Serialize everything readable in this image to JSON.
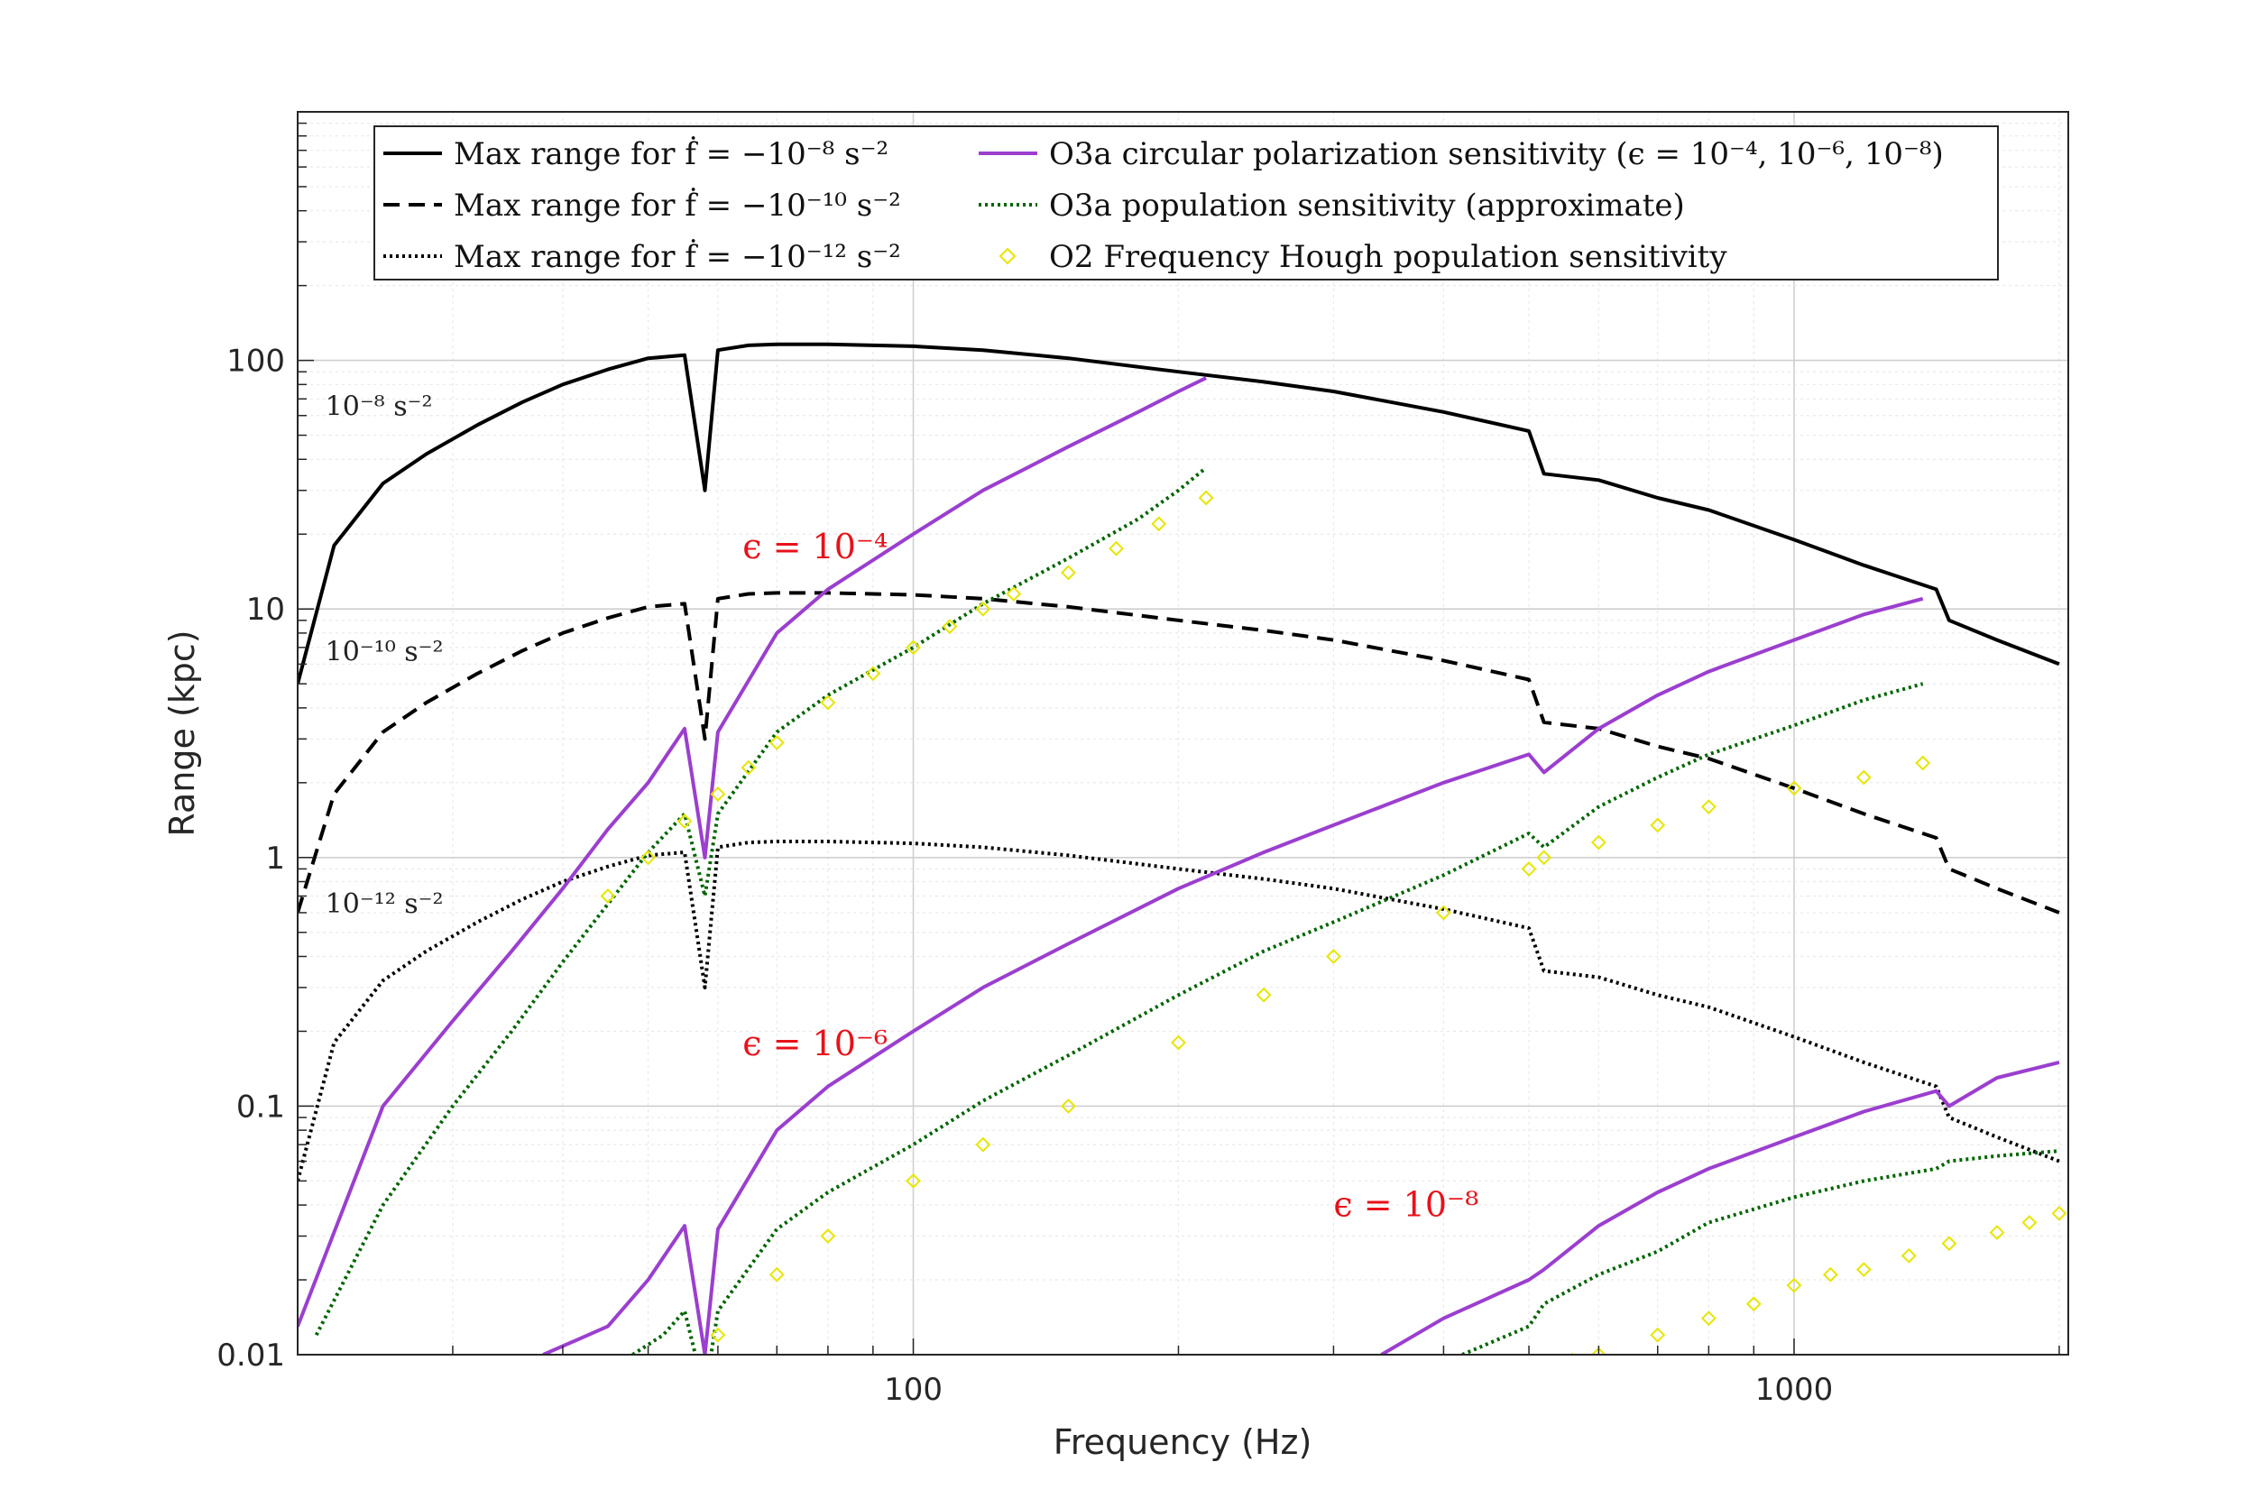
{
  "chart_data": {
    "type": "line",
    "xscale": "log",
    "yscale": "log",
    "xlim": [
      20,
      2048
    ],
    "ylim": [
      0.01,
      1000
    ],
    "xlabel": "Frequency (Hz)",
    "ylabel": "Range (kpc)",
    "grid": true,
    "legend_placement": "top",
    "x_ticks": [
      {
        "value": 100,
        "label": "100"
      },
      {
        "value": 1000,
        "label": "1000"
      }
    ],
    "y_ticks": [
      {
        "value": 0.01,
        "label": "0.01"
      },
      {
        "value": 0.1,
        "label": "0.1"
      },
      {
        "value": 1,
        "label": "1"
      },
      {
        "value": 10,
        "label": "10"
      },
      {
        "value": 100,
        "label": "100"
      }
    ],
    "legend": [
      {
        "text": "Max range for ḟ = −10⁻⁸ s⁻²",
        "color": "#000000",
        "style": "solid"
      },
      {
        "text": "Max range for ḟ = −10⁻¹⁰ s⁻²",
        "color": "#000000",
        "style": "dashed"
      },
      {
        "text": "Max range for ḟ = −10⁻¹² s⁻²",
        "color": "#000000",
        "style": "dotted"
      },
      {
        "text": "O3a circular polarization sensitivity (ϵ = 10⁻⁴, 10⁻⁶, 10⁻⁸)",
        "color": "#9b3fcf",
        "style": "solid"
      },
      {
        "text": "O3a population sensitivity (approximate)",
        "color": "#006400",
        "style": "dotted"
      },
      {
        "text": "O2 Frequency Hough population sensitivity",
        "color": "#e6e600",
        "style": "diamond"
      }
    ],
    "annotations": [
      {
        "text": "10⁻⁸  s⁻²",
        "color": "#222222",
        "x": 21.5,
        "y": 60
      },
      {
        "text": "10⁻¹⁰  s⁻²",
        "color": "#222222",
        "x": 21.5,
        "y": 6.2
      },
      {
        "text": "10⁻¹²  s⁻²",
        "color": "#222222",
        "x": 21.5,
        "y": 0.6
      },
      {
        "text": "ϵ = 10⁻⁴",
        "color": "#e8111a",
        "x": 64,
        "y": 16
      },
      {
        "text": "ϵ = 10⁻⁶",
        "color": "#e8111a",
        "x": 64,
        "y": 0.16
      },
      {
        "text": "ϵ = 10⁻⁸",
        "color": "#e8111a",
        "x": 300,
        "y": 0.036
      }
    ],
    "colors": {
      "max_range": "#000000",
      "circular_polarization": "#9b3fcf",
      "population": "#006400",
      "o2_hough": "#e6e600",
      "epsilon_labels": "#e8111a"
    },
    "series": [
      {
        "name": "Max range for ḟ = −10⁻⁸ s⁻²",
        "style": "solid",
        "color": "#000000",
        "x": [
          20,
          22,
          25,
          28,
          32,
          36,
          40,
          45,
          50,
          55,
          58,
          60,
          65,
          70,
          80,
          90,
          100,
          120,
          150,
          200,
          250,
          300,
          400,
          500,
          520,
          600,
          700,
          800,
          1000,
          1200,
          1450,
          1500,
          1700,
          2000
        ],
        "y": [
          5,
          18,
          32,
          42,
          55,
          68,
          80,
          92,
          102,
          105,
          30,
          110,
          115,
          116,
          116,
          115,
          114,
          110,
          102,
          90,
          82,
          75,
          62,
          52,
          35,
          33,
          28,
          25,
          19,
          15,
          12,
          9,
          7.5,
          6
        ]
      },
      {
        "name": "Max range for ḟ = −10⁻¹⁰ s⁻²",
        "style": "dashed",
        "color": "#000000",
        "x": [
          20,
          22,
          25,
          28,
          32,
          36,
          40,
          45,
          50,
          55,
          58,
          60,
          65,
          70,
          80,
          90,
          100,
          120,
          150,
          200,
          250,
          300,
          400,
          500,
          520,
          600,
          700,
          800,
          1000,
          1200,
          1450,
          1500,
          1700,
          2000
        ],
        "y": [
          0.6,
          1.8,
          3.2,
          4.2,
          5.5,
          6.8,
          8,
          9.2,
          10.2,
          10.5,
          3.0,
          11,
          11.5,
          11.6,
          11.6,
          11.5,
          11.4,
          11,
          10.2,
          9,
          8.2,
          7.5,
          6.2,
          5.2,
          3.5,
          3.3,
          2.8,
          2.5,
          1.9,
          1.5,
          1.2,
          0.9,
          0.75,
          0.6
        ]
      },
      {
        "name": "Max range for ḟ = −10⁻¹² s⁻²",
        "style": "dotted",
        "color": "#000000",
        "x": [
          20,
          22,
          25,
          28,
          32,
          36,
          40,
          45,
          50,
          55,
          58,
          60,
          65,
          70,
          80,
          90,
          100,
          120,
          150,
          200,
          250,
          300,
          400,
          500,
          520,
          600,
          700,
          800,
          1000,
          1200,
          1450,
          1500,
          1700,
          2000
        ],
        "y": [
          0.05,
          0.18,
          0.32,
          0.42,
          0.55,
          0.68,
          0.8,
          0.92,
          1.02,
          1.05,
          0.3,
          1.1,
          1.15,
          1.16,
          1.16,
          1.15,
          1.14,
          1.1,
          1.02,
          0.9,
          0.82,
          0.75,
          0.62,
          0.52,
          0.35,
          0.33,
          0.28,
          0.25,
          0.19,
          0.15,
          0.12,
          0.09,
          0.075,
          0.06
        ]
      },
      {
        "name": "O3a circular polarization sensitivity (ϵ = 10⁻⁴)",
        "style": "solid",
        "color": "#9b3fcf",
        "x": [
          20,
          25,
          30,
          35,
          40,
          45,
          50,
          55,
          58,
          60,
          70,
          80,
          100,
          120,
          150,
          180,
          200,
          215
        ],
        "y": [
          0.013,
          0.1,
          0.22,
          0.42,
          0.75,
          1.3,
          2.0,
          3.3,
          1.0,
          3.2,
          8,
          12,
          20,
          30,
          45,
          62,
          75,
          85
        ]
      },
      {
        "name": "O3a circular polarization sensitivity (ϵ = 10⁻⁶)",
        "style": "solid",
        "color": "#9b3fcf",
        "x": [
          38,
          45,
          50,
          55,
          58,
          60,
          70,
          80,
          100,
          120,
          150,
          200,
          250,
          300,
          400,
          500,
          520,
          600,
          700,
          800,
          1000,
          1200,
          1400
        ],
        "y": [
          0.01,
          0.013,
          0.02,
          0.033,
          0.01,
          0.032,
          0.08,
          0.12,
          0.2,
          0.3,
          0.45,
          0.75,
          1.05,
          1.35,
          2.0,
          2.6,
          2.2,
          3.3,
          4.5,
          5.6,
          7.5,
          9.5,
          11
        ]
      },
      {
        "name": "O3a circular polarization sensitivity (ϵ = 10⁻⁸)",
        "style": "solid",
        "color": "#9b3fcf",
        "x": [
          340,
          400,
          500,
          520,
          600,
          700,
          800,
          1000,
          1200,
          1450,
          1500,
          1700,
          2000
        ],
        "y": [
          0.01,
          0.014,
          0.02,
          0.022,
          0.033,
          0.045,
          0.056,
          0.075,
          0.095,
          0.115,
          0.1,
          0.13,
          0.15
        ]
      },
      {
        "name": "O3a population sensitivity (approximate) (ϵ = 10⁻⁴)",
        "style": "dotted",
        "color": "#006400",
        "x": [
          21,
          25,
          30,
          35,
          40,
          45,
          50,
          55,
          58,
          60,
          70,
          80,
          100,
          120,
          150,
          180,
          200,
          215
        ],
        "y": [
          0.012,
          0.04,
          0.1,
          0.2,
          0.38,
          0.65,
          1.05,
          1.5,
          0.7,
          1.5,
          3.2,
          4.5,
          7,
          10.5,
          16,
          23,
          30,
          37
        ]
      },
      {
        "name": "O3a population sensitivity (approximate) (ϵ = 10⁻⁶)",
        "style": "dotted",
        "color": "#006400",
        "x": [
          48,
          52,
          55,
          58,
          60,
          70,
          80,
          100,
          120,
          150,
          200,
          250,
          300,
          400,
          500,
          520,
          600,
          700,
          800,
          1000,
          1200,
          1400
        ],
        "y": [
          0.01,
          0.012,
          0.015,
          0.007,
          0.015,
          0.032,
          0.045,
          0.07,
          0.105,
          0.16,
          0.28,
          0.42,
          0.55,
          0.85,
          1.25,
          1.1,
          1.6,
          2.1,
          2.6,
          3.4,
          4.3,
          5
        ]
      },
      {
        "name": "O3a population sensitivity (approximate) (ϵ = 10⁻⁸)",
        "style": "dotted",
        "color": "#006400",
        "x": [
          420,
          500,
          520,
          600,
          700,
          800,
          1000,
          1200,
          1450,
          1500,
          1700,
          2000
        ],
        "y": [
          0.01,
          0.013,
          0.016,
          0.021,
          0.026,
          0.034,
          0.043,
          0.05,
          0.056,
          0.06,
          0.063,
          0.066
        ]
      },
      {
        "name": "O2 Frequency Hough population sensitivity (ϵ = 10⁻⁴)",
        "style": "diamond",
        "color": "#e6e600",
        "x": [
          45,
          50,
          55,
          60,
          65,
          70,
          80,
          90,
          100,
          110,
          120,
          130,
          150,
          170,
          190,
          215
        ],
        "y": [
          0.7,
          1.0,
          1.4,
          1.8,
          2.3,
          2.9,
          4.2,
          5.5,
          7,
          8.5,
          10,
          11.5,
          14,
          17.5,
          22,
          28
        ]
      },
      {
        "name": "O2 Frequency Hough population sensitivity (ϵ = 10⁻⁶)",
        "style": "diamond",
        "color": "#e6e600",
        "x": [
          60,
          70,
          80,
          100,
          120,
          150,
          200,
          250,
          300,
          400,
          500,
          520,
          600,
          700,
          800,
          1000,
          1200,
          1400
        ],
        "y": [
          0.012,
          0.021,
          0.03,
          0.05,
          0.07,
          0.1,
          0.18,
          0.28,
          0.4,
          0.6,
          0.9,
          1.0,
          1.15,
          1.35,
          1.6,
          1.9,
          2.1,
          2.4
        ]
      },
      {
        "name": "O2 Frequency Hough population sensitivity (ϵ = 10⁻⁸)",
        "style": "diamond",
        "color": "#e6e600",
        "x": [
          500,
          560,
          600,
          700,
          800,
          900,
          1000,
          1100,
          1200,
          1350,
          1500,
          1700,
          1850,
          2000
        ],
        "y": [
          0.009,
          0.0095,
          0.01,
          0.012,
          0.014,
          0.016,
          0.019,
          0.021,
          0.022,
          0.025,
          0.028,
          0.031,
          0.034,
          0.037
        ]
      }
    ]
  }
}
